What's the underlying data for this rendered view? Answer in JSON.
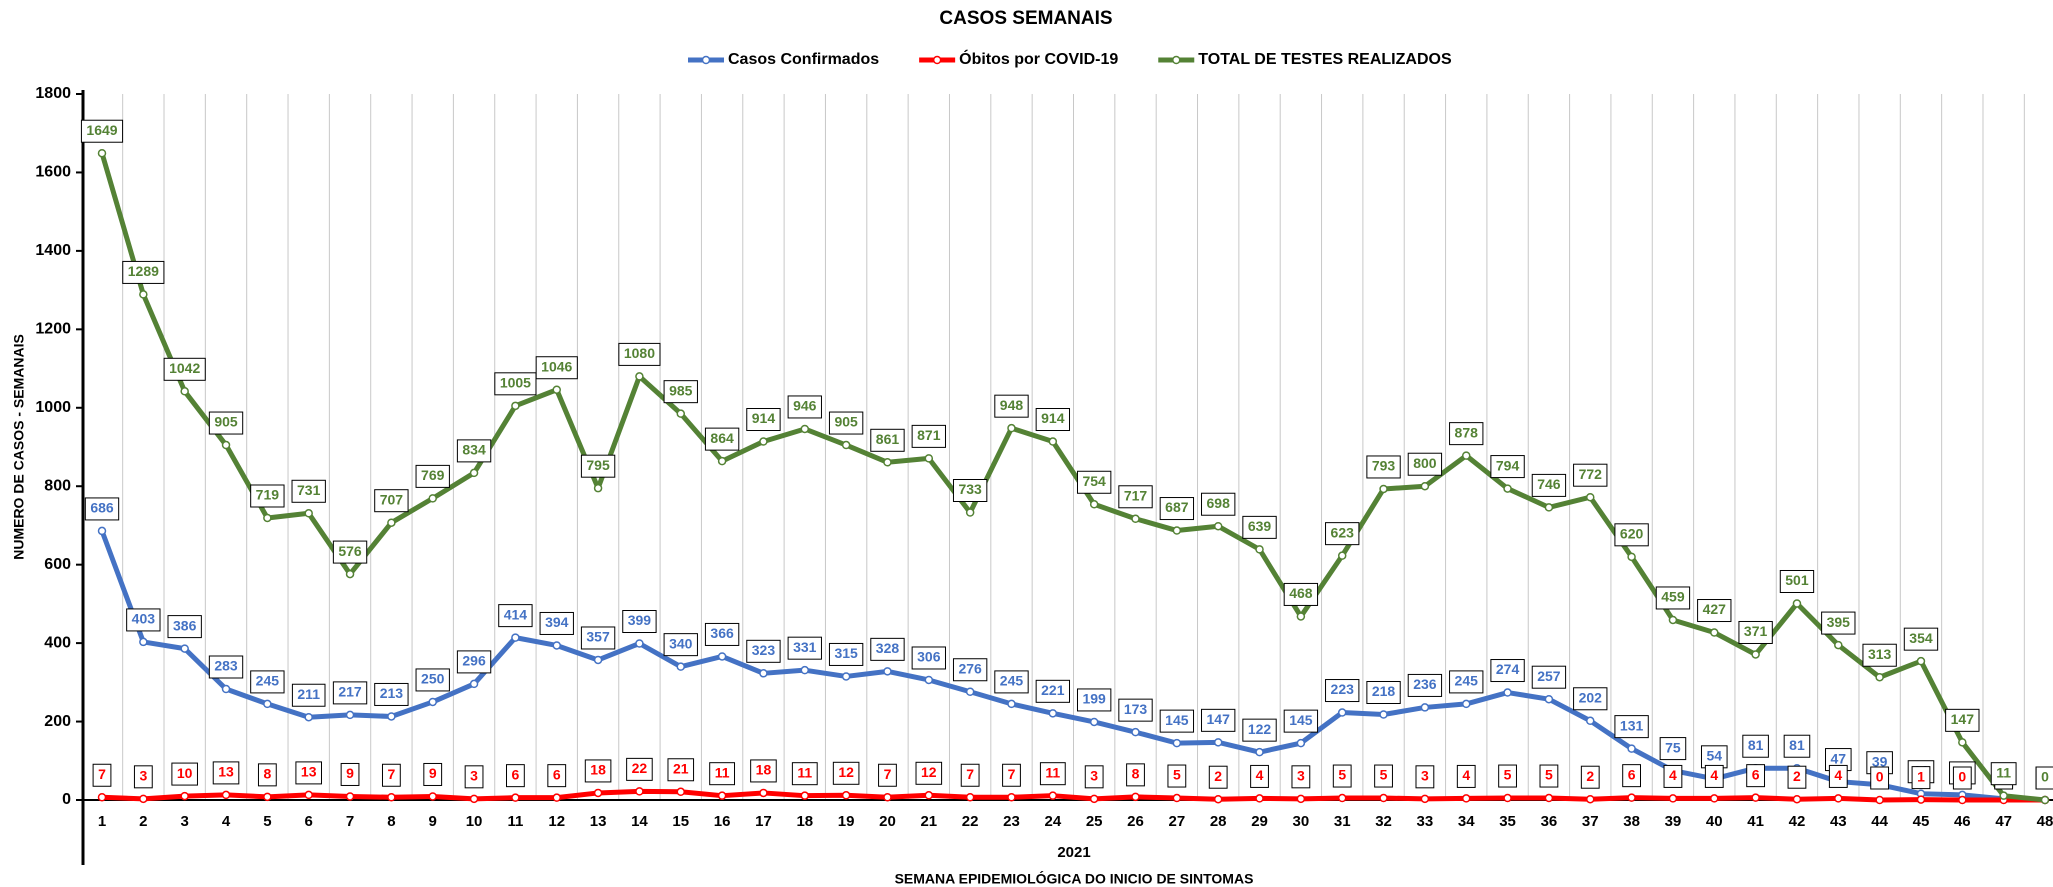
{
  "chart_data": {
    "type": "line",
    "title": "CASOS SEMANAIS",
    "x_label": "SEMANA EPIDEMIOLÓGICA DO INICIO DE SINTOMAS",
    "x_group_label": "2021",
    "y_label": "NUMERO DE CASOS - SEMANAIS",
    "categories": [
      "1",
      "2",
      "3",
      "4",
      "5",
      "6",
      "7",
      "8",
      "9",
      "10",
      "11",
      "12",
      "13",
      "14",
      "15",
      "16",
      "17",
      "18",
      "19",
      "20",
      "21",
      "22",
      "23",
      "24",
      "25",
      "26",
      "27",
      "28",
      "29",
      "30",
      "31",
      "32",
      "33",
      "34",
      "35",
      "36",
      "37",
      "38",
      "39",
      "40",
      "41",
      "42",
      "43",
      "44",
      "45",
      "46",
      "47",
      "48"
    ],
    "ylim": [
      0,
      1800
    ],
    "yticks": [
      0,
      200,
      400,
      600,
      800,
      1000,
      1200,
      1400,
      1600,
      1800
    ],
    "legend": "top",
    "series": [
      {
        "name": "Casos Confirmados",
        "color": "#4472c4",
        "values": [
          686,
          403,
          386,
          283,
          245,
          211,
          217,
          213,
          250,
          296,
          414,
          394,
          357,
          399,
          340,
          366,
          323,
          331,
          315,
          328,
          306,
          276,
          245,
          221,
          199,
          173,
          145,
          147,
          122,
          145,
          223,
          218,
          236,
          245,
          274,
          257,
          202,
          131,
          75,
          54,
          81,
          81,
          47,
          39,
          16,
          13,
          3,
          0
        ]
      },
      {
        "name": "Óbitos por COVID-19",
        "color": "#ff0000",
        "values": [
          7,
          3,
          10,
          13,
          8,
          13,
          9,
          7,
          9,
          3,
          6,
          6,
          18,
          22,
          21,
          11,
          18,
          11,
          12,
          7,
          12,
          7,
          7,
          11,
          3,
          8,
          5,
          2,
          4,
          3,
          5,
          5,
          3,
          4,
          5,
          5,
          2,
          6,
          4,
          4,
          6,
          2,
          4,
          0,
          1,
          0,
          0,
          0
        ]
      },
      {
        "name": "TOTAL DE TESTES REALIZADOS",
        "color": "#548235",
        "values": [
          1649,
          1289,
          1042,
          905,
          719,
          731,
          576,
          707,
          769,
          834,
          1005,
          1046,
          795,
          1080,
          985,
          864,
          914,
          946,
          905,
          861,
          871,
          733,
          948,
          914,
          754,
          717,
          687,
          698,
          639,
          468,
          623,
          793,
          800,
          878,
          794,
          746,
          772,
          620,
          459,
          427,
          371,
          501,
          395,
          313,
          354,
          147,
          11,
          0
        ]
      }
    ]
  }
}
